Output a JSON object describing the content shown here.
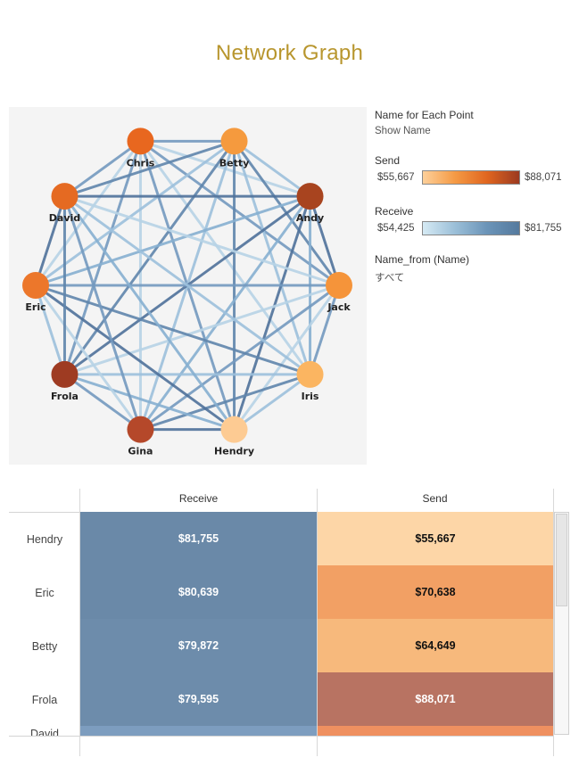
{
  "title": "Network Graph",
  "chart_data": {
    "type": "network",
    "nodes": [
      {
        "name": "Chris",
        "color": "#e8671f"
      },
      {
        "name": "Betty",
        "color": "#f59a3e"
      },
      {
        "name": "Andy",
        "color": "#a8441f"
      },
      {
        "name": "Jack",
        "color": "#f5943a"
      },
      {
        "name": "Iris",
        "color": "#fbb561"
      },
      {
        "name": "Hendry",
        "color": "#fdcb93"
      },
      {
        "name": "Gina",
        "color": "#b5482a"
      },
      {
        "name": "Frola",
        "color": "#9e3b22"
      },
      {
        "name": "Eric",
        "color": "#ec772b"
      },
      {
        "name": "David",
        "color": "#e56a22"
      }
    ],
    "edge_color_encoding": "Receive",
    "node_color_encoding": "Send"
  },
  "controls": {
    "name_label": {
      "title": "Name for Each Point",
      "value": "Show Name"
    },
    "send_legend": {
      "title": "Send",
      "min": "$55,667",
      "max": "$88,071"
    },
    "receive_legend": {
      "title": "Receive",
      "min": "$54,425",
      "max": "$81,755"
    },
    "filter": {
      "title": "Name_from (Name)",
      "value": "すべて"
    }
  },
  "table": {
    "headers": {
      "receive": "Receive",
      "send": "Send"
    },
    "rows": [
      {
        "name": "Hendry",
        "receive": "$81,755",
        "send": "$55,667",
        "receive_color": "#6a89a8",
        "send_color": "#fdd6a7"
      },
      {
        "name": "Eric",
        "receive": "$80,639",
        "send": "$70,638",
        "receive_color": "#6a89a8",
        "send_color": "#f2a064"
      },
      {
        "name": "Betty",
        "receive": "$79,872",
        "send": "$64,649",
        "receive_color": "#6d8cab",
        "send_color": "#f7b97c"
      },
      {
        "name": "Frola",
        "receive": "$79,595",
        "send": "$88,071",
        "receive_color": "#6d8cab",
        "send_color": "#b87362"
      },
      {
        "name": "David",
        "receive": "",
        "send": "",
        "receive_color": "#7d9dbf",
        "send_color": "#ef9060"
      }
    ]
  }
}
